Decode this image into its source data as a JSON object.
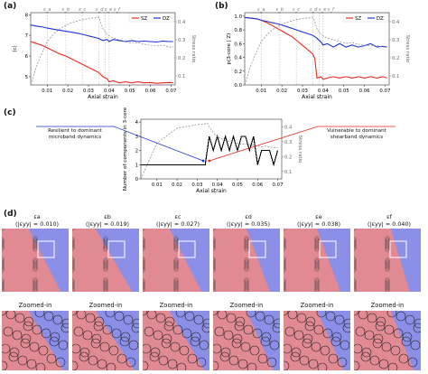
{
  "panels": {
    "a": "(a)",
    "b": "(b)",
    "c": "(c)",
    "d": "(d)"
  },
  "chart_data": [
    {
      "id": "a",
      "type": "line",
      "xlabel": "Axial strain",
      "ylabel": "⟨c⟩",
      "ylabel_right": "Stress ratio",
      "x_ticks": [
        "0.01",
        "0.02",
        "0.03",
        "0.04",
        "0.05",
        "0.06",
        "0.07"
      ],
      "y_ticks": [
        "5",
        "6",
        "7",
        "8"
      ],
      "y_ticks_right": [
        "0.1",
        "0.2",
        "0.3",
        "0.4"
      ],
      "xlim": [
        0.002,
        0.072
      ],
      "ylim": [
        4.6,
        8.1
      ],
      "ylim_right": [
        0.05,
        0.45
      ],
      "legend": "top-right",
      "event_labels": [
        "ε_a",
        "ε_b",
        "ε_c",
        "ε_d ε_e ε_f"
      ],
      "event_x": [
        0.01,
        0.019,
        0.027,
        0.035,
        0.038,
        0.04
      ],
      "x": [
        0.002,
        0.005,
        0.008,
        0.01,
        0.013,
        0.016,
        0.019,
        0.022,
        0.025,
        0.027,
        0.029,
        0.031,
        0.033,
        0.035,
        0.037,
        0.039,
        0.04,
        0.042,
        0.045,
        0.048,
        0.051,
        0.054,
        0.057,
        0.06,
        0.063,
        0.066,
        0.069,
        0.071
      ],
      "series": [
        {
          "name": "SZ",
          "color": "#e8281f",
          "values": [
            6.7,
            6.6,
            6.5,
            6.4,
            6.25,
            6.1,
            6.0,
            5.85,
            5.7,
            5.6,
            5.5,
            5.4,
            5.3,
            5.2,
            5.0,
            4.9,
            4.75,
            4.8,
            4.7,
            4.75,
            4.7,
            4.75,
            4.7,
            4.72,
            4.68,
            4.7,
            4.72,
            4.7
          ]
        },
        {
          "name": "DZ",
          "color": "#1f2fd8",
          "values": [
            7.5,
            7.45,
            7.4,
            7.35,
            7.3,
            7.25,
            7.2,
            7.15,
            7.1,
            7.05,
            7.0,
            6.95,
            6.9,
            6.85,
            6.75,
            6.8,
            6.7,
            6.8,
            6.75,
            6.7,
            6.75,
            6.7,
            6.72,
            6.7,
            6.68,
            6.72,
            6.7,
            6.7
          ]
        },
        {
          "name": "Stress ratio",
          "color": "#888888",
          "dashed": true,
          "axis": "right",
          "values": [
            0.05,
            0.16,
            0.24,
            0.29,
            0.33,
            0.36,
            0.38,
            0.395,
            0.405,
            0.41,
            0.415,
            0.42,
            0.42,
            0.425,
            0.36,
            0.33,
            0.32,
            0.31,
            0.3,
            0.29,
            0.28,
            0.285,
            0.275,
            0.27,
            0.265,
            0.27,
            0.26,
            0.26
          ]
        }
      ]
    },
    {
      "id": "b",
      "type": "line",
      "xlabel": "Axial strain",
      "ylabel": "p(3-core | Z)",
      "ylabel_right": "Stress ratio",
      "x_ticks": [
        "0.01",
        "0.02",
        "0.03",
        "0.04",
        "0.05",
        "0.06",
        "0.07"
      ],
      "y_ticks": [
        "0.0",
        "0.2",
        "0.4",
        "0.6",
        "0.8",
        "1.0"
      ],
      "y_ticks_right": [
        "0.1",
        "0.2",
        "0.3",
        "0.4"
      ],
      "xlim": [
        0.002,
        0.072
      ],
      "ylim": [
        0.0,
        1.05
      ],
      "ylim_right": [
        0.05,
        0.45
      ],
      "legend": "top-right",
      "event_labels": [
        "ε_a",
        "ε_b",
        "ε_c",
        "ε_d ε_e ε_f"
      ],
      "event_x": [
        0.01,
        0.019,
        0.027,
        0.035,
        0.038,
        0.04
      ],
      "x": [
        0.002,
        0.005,
        0.008,
        0.01,
        0.013,
        0.016,
        0.019,
        0.022,
        0.025,
        0.027,
        0.029,
        0.031,
        0.033,
        0.035,
        0.036,
        0.037,
        0.039,
        0.04,
        0.042,
        0.045,
        0.048,
        0.051,
        0.054,
        0.057,
        0.06,
        0.063,
        0.066,
        0.069,
        0.071
      ],
      "series": [
        {
          "name": "SZ",
          "color": "#e8281f",
          "values": [
            0.98,
            0.97,
            0.96,
            0.94,
            0.9,
            0.85,
            0.8,
            0.75,
            0.7,
            0.65,
            0.6,
            0.55,
            0.5,
            0.45,
            0.38,
            0.1,
            0.12,
            0.08,
            0.1,
            0.12,
            0.1,
            0.12,
            0.1,
            0.12,
            0.1,
            0.12,
            0.1,
            0.12,
            0.1
          ]
        },
        {
          "name": "DZ",
          "color": "#1f2fd8",
          "values": [
            0.98,
            0.97,
            0.96,
            0.94,
            0.92,
            0.9,
            0.88,
            0.85,
            0.82,
            0.8,
            0.78,
            0.76,
            0.74,
            0.72,
            0.7,
            0.68,
            0.62,
            0.58,
            0.6,
            0.55,
            0.6,
            0.55,
            0.58,
            0.55,
            0.57,
            0.6,
            0.55,
            0.56,
            0.55
          ]
        },
        {
          "name": "Stress ratio",
          "color": "#888888",
          "dashed": true,
          "axis": "right",
          "values": [
            0.05,
            0.16,
            0.24,
            0.29,
            0.33,
            0.36,
            0.38,
            0.395,
            0.405,
            0.41,
            0.415,
            0.42,
            0.42,
            0.425,
            0.4,
            0.36,
            0.33,
            0.32,
            0.31,
            0.3,
            0.29,
            0.28,
            0.285,
            0.275,
            0.27,
            0.265,
            0.27,
            0.26,
            0.26
          ]
        }
      ]
    },
    {
      "id": "c",
      "type": "line",
      "xlabel": "Axial strain",
      "ylabel": "Number of components in 3-core",
      "ylabel_right": "Stress ratio",
      "x_ticks": [
        "0.01",
        "0.02",
        "0.03",
        "0.04",
        "0.05",
        "0.06",
        "0.07"
      ],
      "y_ticks": [
        "0",
        "1",
        "2",
        "3",
        "4"
      ],
      "y_ticks_right": [
        "0.1",
        "0.2",
        "0.3",
        "0.4"
      ],
      "xlim": [
        0.002,
        0.072
      ],
      "ylim": [
        0,
        4.2
      ],
      "ylim_right": [
        0.05,
        0.45
      ],
      "x": [
        0.002,
        0.01,
        0.02,
        0.03,
        0.034,
        0.035,
        0.036,
        0.038,
        0.04,
        0.042,
        0.044,
        0.046,
        0.048,
        0.05,
        0.052,
        0.054,
        0.056,
        0.058,
        0.06,
        0.062,
        0.064,
        0.066,
        0.068,
        0.07
      ],
      "series": [
        {
          "name": "components",
          "color": "#000000",
          "values": [
            1,
            1,
            1,
            1,
            1,
            2,
            3,
            2,
            3,
            2,
            3,
            2,
            3,
            2,
            3,
            3,
            2,
            3,
            1,
            2,
            2,
            2,
            1,
            2
          ]
        },
        {
          "name": "Stress ratio",
          "color": "#888888",
          "dashed": true,
          "axis": "right",
          "values": [
            0.05,
            0.29,
            0.39,
            0.415,
            0.42,
            0.425,
            0.4,
            0.36,
            0.33,
            0.32,
            0.31,
            0.3,
            0.3,
            0.29,
            0.28,
            0.285,
            0.28,
            0.275,
            0.27,
            0.265,
            0.27,
            0.265,
            0.26,
            0.26
          ]
        }
      ],
      "marker_colors": [
        "#1f2fd8",
        "#e8281f"
      ],
      "callouts": {
        "left": "Resilient to dominant microband dynamics",
        "right": "Vulnerable to dominant shearband dynamics"
      }
    }
  ],
  "panel_d": {
    "zoom_label": "Zoomed-in",
    "columns": [
      {
        "eps": "εa",
        "strain": "(|εyy| = 0.010)",
        "red_frac": 0.4
      },
      {
        "eps": "εb",
        "strain": "(|εyy| = 0.019)",
        "red_frac": 0.35
      },
      {
        "eps": "εc",
        "strain": "(|εyy| = 0.027)",
        "red_frac": 0.4
      },
      {
        "eps": "εd",
        "strain": "(|εyy| = 0.035)",
        "red_frac": 0.5
      },
      {
        "eps": "εe",
        "strain": "(|εyy| = 0.038)",
        "red_frac": 0.5
      },
      {
        "eps": "εf",
        "strain": "(|εyy| = 0.040)",
        "red_frac": 0.55
      }
    ]
  },
  "colors": {
    "sz": "#e8281f",
    "dz": "#1f2fd8",
    "stress": "#888888",
    "tile_red": "#f08a85",
    "tile_blue": "#8c8fe8"
  }
}
